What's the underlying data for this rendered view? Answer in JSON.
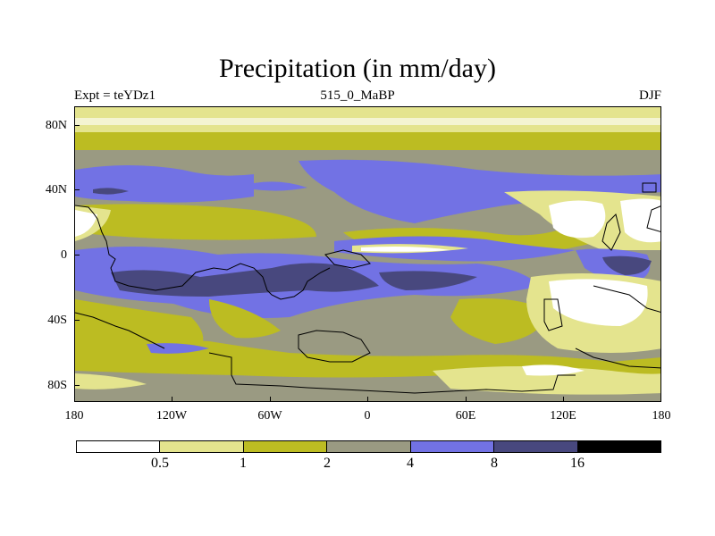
{
  "title": "Precipitation (in mm/day)",
  "subtitle_left": "Expt = teYDz1",
  "subtitle_center": "515_0_MaBP",
  "subtitle_right": "DJF",
  "y_axis": {
    "ticks": [
      "80N",
      "40N",
      "0",
      "40S",
      "80S"
    ]
  },
  "x_axis": {
    "ticks": [
      "180",
      "120W",
      "60W",
      "0",
      "60E",
      "120E",
      "180"
    ]
  },
  "colors": {
    "lt_0_5": "#ffffff",
    "b_0_5_1": "#e4e48e",
    "b_1_2": "#bcbc22",
    "b_2_4": "#9a9a82",
    "b_4_8": "#7272e4",
    "b_8_16": "#48487e",
    "gt_16": "#000000"
  },
  "legend": {
    "labels": [
      "0.5",
      "1",
      "2",
      "4",
      "8",
      "16"
    ],
    "colors": [
      "#ffffff",
      "#e4e48e",
      "#bcbc22",
      "#9a9a82",
      "#7272e4",
      "#48487e",
      "#000000"
    ]
  }
}
